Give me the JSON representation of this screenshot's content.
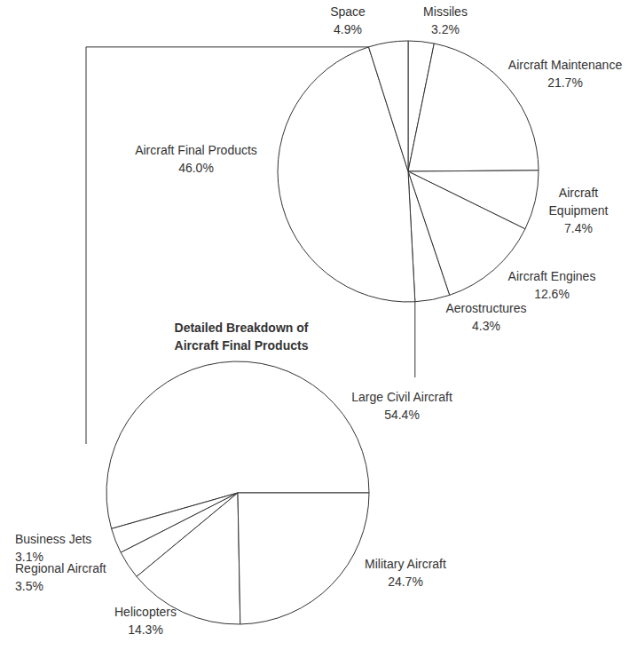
{
  "chart_data": [
    {
      "type": "pie",
      "categories": [
        "Missiles",
        "Aircraft Maintenance",
        "Aircraft Equipment",
        "Aircraft Engines",
        "Aerostructures",
        "Aircraft Final Products",
        "Space"
      ],
      "values": [
        3.2,
        21.7,
        7.4,
        12.6,
        4.3,
        46.0,
        4.9
      ],
      "value_labels": [
        "3.2%",
        "21.7%",
        "7.4%",
        "12.6%",
        "4.3%",
        "46.0%",
        "4.9%"
      ],
      "color": "#ffffff",
      "data_labels": true
    },
    {
      "type": "pie",
      "title": "Detailed Breakdown of Aircraft Final Products",
      "categories": [
        "Large Civil Aircraft",
        "Business Jets",
        "Regional Aircraft",
        "Helicopters",
        "Military Aircraft"
      ],
      "values": [
        54.4,
        3.1,
        3.5,
        14.3,
        24.7
      ],
      "value_labels": [
        "54.4%",
        "3.1%",
        "3.5%",
        "14.3%",
        "24.7%"
      ],
      "color": "#ffffff",
      "data_labels": true
    }
  ]
}
